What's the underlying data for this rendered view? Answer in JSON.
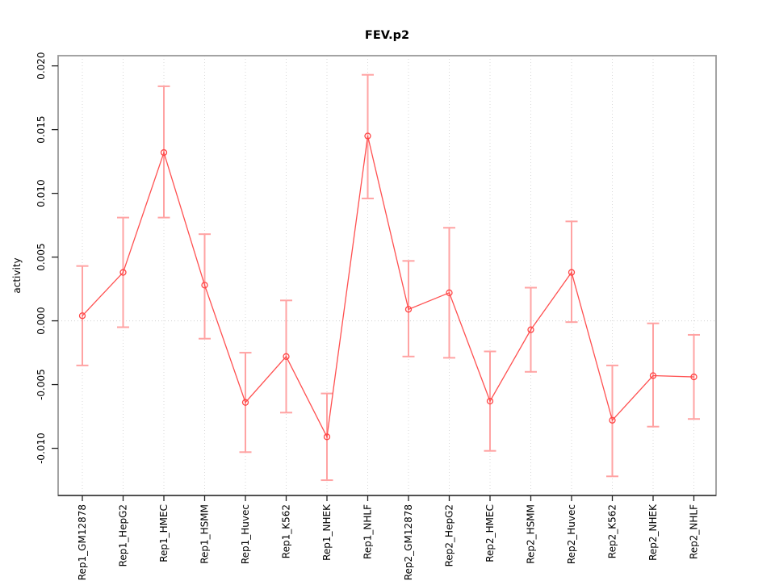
{
  "page": {
    "background": "#ffffff",
    "description": "R-style line plot with points and confidence-interval error bars"
  },
  "chart_data": {
    "type": "line",
    "title": "FEV.p2",
    "xlabel": "",
    "ylabel": "activity",
    "legend": "none",
    "categories": [
      "Rep1_GM12878",
      "Rep1_HepG2",
      "Rep1_HMEC",
      "Rep1_HSMM",
      "Rep1_Huvec",
      "Rep1_K562",
      "Rep1_NHEK",
      "Rep1_NHLF",
      "Rep2_GM12878",
      "Rep2_HepG2",
      "Rep2_HMEC",
      "Rep2_HSMM",
      "Rep2_Huvec",
      "Rep2_K562",
      "Rep2_NHEK",
      "Rep2_NHLF"
    ],
    "series": [
      {
        "name": "activity",
        "values": [
          0.0004,
          0.0038,
          0.0132,
          0.0028,
          -0.0064,
          -0.0028,
          -0.0091,
          0.0145,
          0.0009,
          0.0022,
          -0.0063,
          -0.0007,
          0.0038,
          -0.0078,
          -0.0043,
          -0.0044
        ],
        "ci_high": [
          0.0043,
          0.0081,
          0.0184,
          0.0068,
          -0.0025,
          0.0016,
          -0.0057,
          0.0193,
          0.0047,
          0.0073,
          -0.0024,
          0.0026,
          0.0078,
          -0.0035,
          -0.0002,
          -0.0011
        ],
        "ci_low": [
          -0.0035,
          -0.0005,
          0.0081,
          -0.0014,
          -0.0103,
          -0.0072,
          -0.0125,
          0.0096,
          -0.0028,
          -0.0029,
          -0.0102,
          -0.004,
          -0.0001,
          -0.0122,
          -0.0083,
          -0.0077
        ]
      }
    ],
    "ytick_values": [
      0.02,
      0.015,
      0.01,
      0.005,
      0.0,
      -0.005,
      -0.01
    ],
    "ytick_labels": [
      "0.020",
      "0.015",
      "0.010",
      "0.005",
      "0.000",
      "-0.005",
      "-0.010"
    ],
    "ylim": [
      -0.0137,
      0.0208
    ],
    "grid": {
      "vertical_dotted_per_category": true,
      "horizontal_zero_dotted_line": true
    },
    "marker": "open-circle",
    "colors": {
      "series_line": "#ff5050",
      "point_stroke": "#ff4545",
      "error_bar": "#ffa3a3",
      "grid_line": "#d9d9d9",
      "zero_line": "#cfcfcf",
      "plot_border": "#999999",
      "axis_line": "#333333",
      "tick_mark": "#222222",
      "text": "#000000"
    }
  }
}
